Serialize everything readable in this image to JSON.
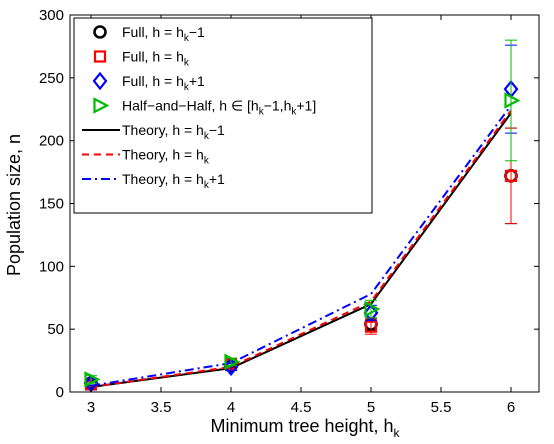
{
  "chart_data": {
    "type": "line",
    "xlabel": "Minimum tree height, h",
    "xlabel_subscript": "k",
    "ylabel": "Population size, n",
    "xlim": [
      2.85,
      6.2
    ],
    "ylim": [
      0,
      300
    ],
    "x_ticks": [
      "3",
      "3.5",
      "4",
      "4.5",
      "5",
      "5.5",
      "6"
    ],
    "y_ticks": [
      "0",
      "50",
      "100",
      "150",
      "200",
      "250",
      "300"
    ],
    "grid": false,
    "legend_position": "top-left",
    "marker_series": [
      {
        "legend": [
          "Full, h = h",
          "k",
          "−1"
        ],
        "marker": "circle",
        "color": "#000000",
        "x": [
          3,
          4,
          5,
          6
        ],
        "y": [
          7,
          21,
          54,
          172
        ],
        "err": [
          2,
          3,
          5,
          38
        ]
      },
      {
        "legend": [
          "Full, h = h",
          "k",
          ""
        ],
        "marker": "square",
        "color": "#ff0000",
        "x": [
          3,
          4,
          5,
          6
        ],
        "y": [
          6,
          22,
          52,
          172
        ],
        "err": [
          2,
          3,
          6,
          38
        ]
      },
      {
        "legend": [
          "Full, h = h",
          "k",
          "+1"
        ],
        "marker": "diamond",
        "color": "#0000ff",
        "x": [
          3,
          4,
          5,
          6
        ],
        "y": [
          7,
          20,
          63,
          241
        ],
        "err": [
          2,
          3,
          6,
          35
        ]
      },
      {
        "legend": [
          "Half−and−Half, h ∈ [h",
          "k",
          "−1,h",
          "k",
          "+1]"
        ],
        "marker": "triangle-right",
        "color": "#00bb00",
        "x": [
          3,
          4,
          5,
          6
        ],
        "y": [
          10,
          24,
          66,
          232
        ],
        "err": [
          3,
          3,
          7,
          48
        ]
      }
    ],
    "line_series": [
      {
        "legend": [
          "Theory, h = h",
          "k",
          "−1"
        ],
        "color": "#000000",
        "dash": "",
        "x": [
          3,
          4,
          5,
          6
        ],
        "y": [
          4,
          19,
          70,
          222
        ]
      },
      {
        "legend": [
          "Theory, h = h",
          "k",
          ""
        ],
        "color": "#ff0000",
        "dash": "7,5",
        "x": [
          3,
          4,
          5,
          6
        ],
        "y": [
          4,
          20,
          72,
          224
        ]
      },
      {
        "legend": [
          "Theory, h = h",
          "k",
          "+1"
        ],
        "color": "#0000ff",
        "dash": "9,4,2,4",
        "x": [
          3,
          4,
          5,
          6
        ],
        "y": [
          5,
          23,
          78,
          228
        ]
      }
    ]
  }
}
